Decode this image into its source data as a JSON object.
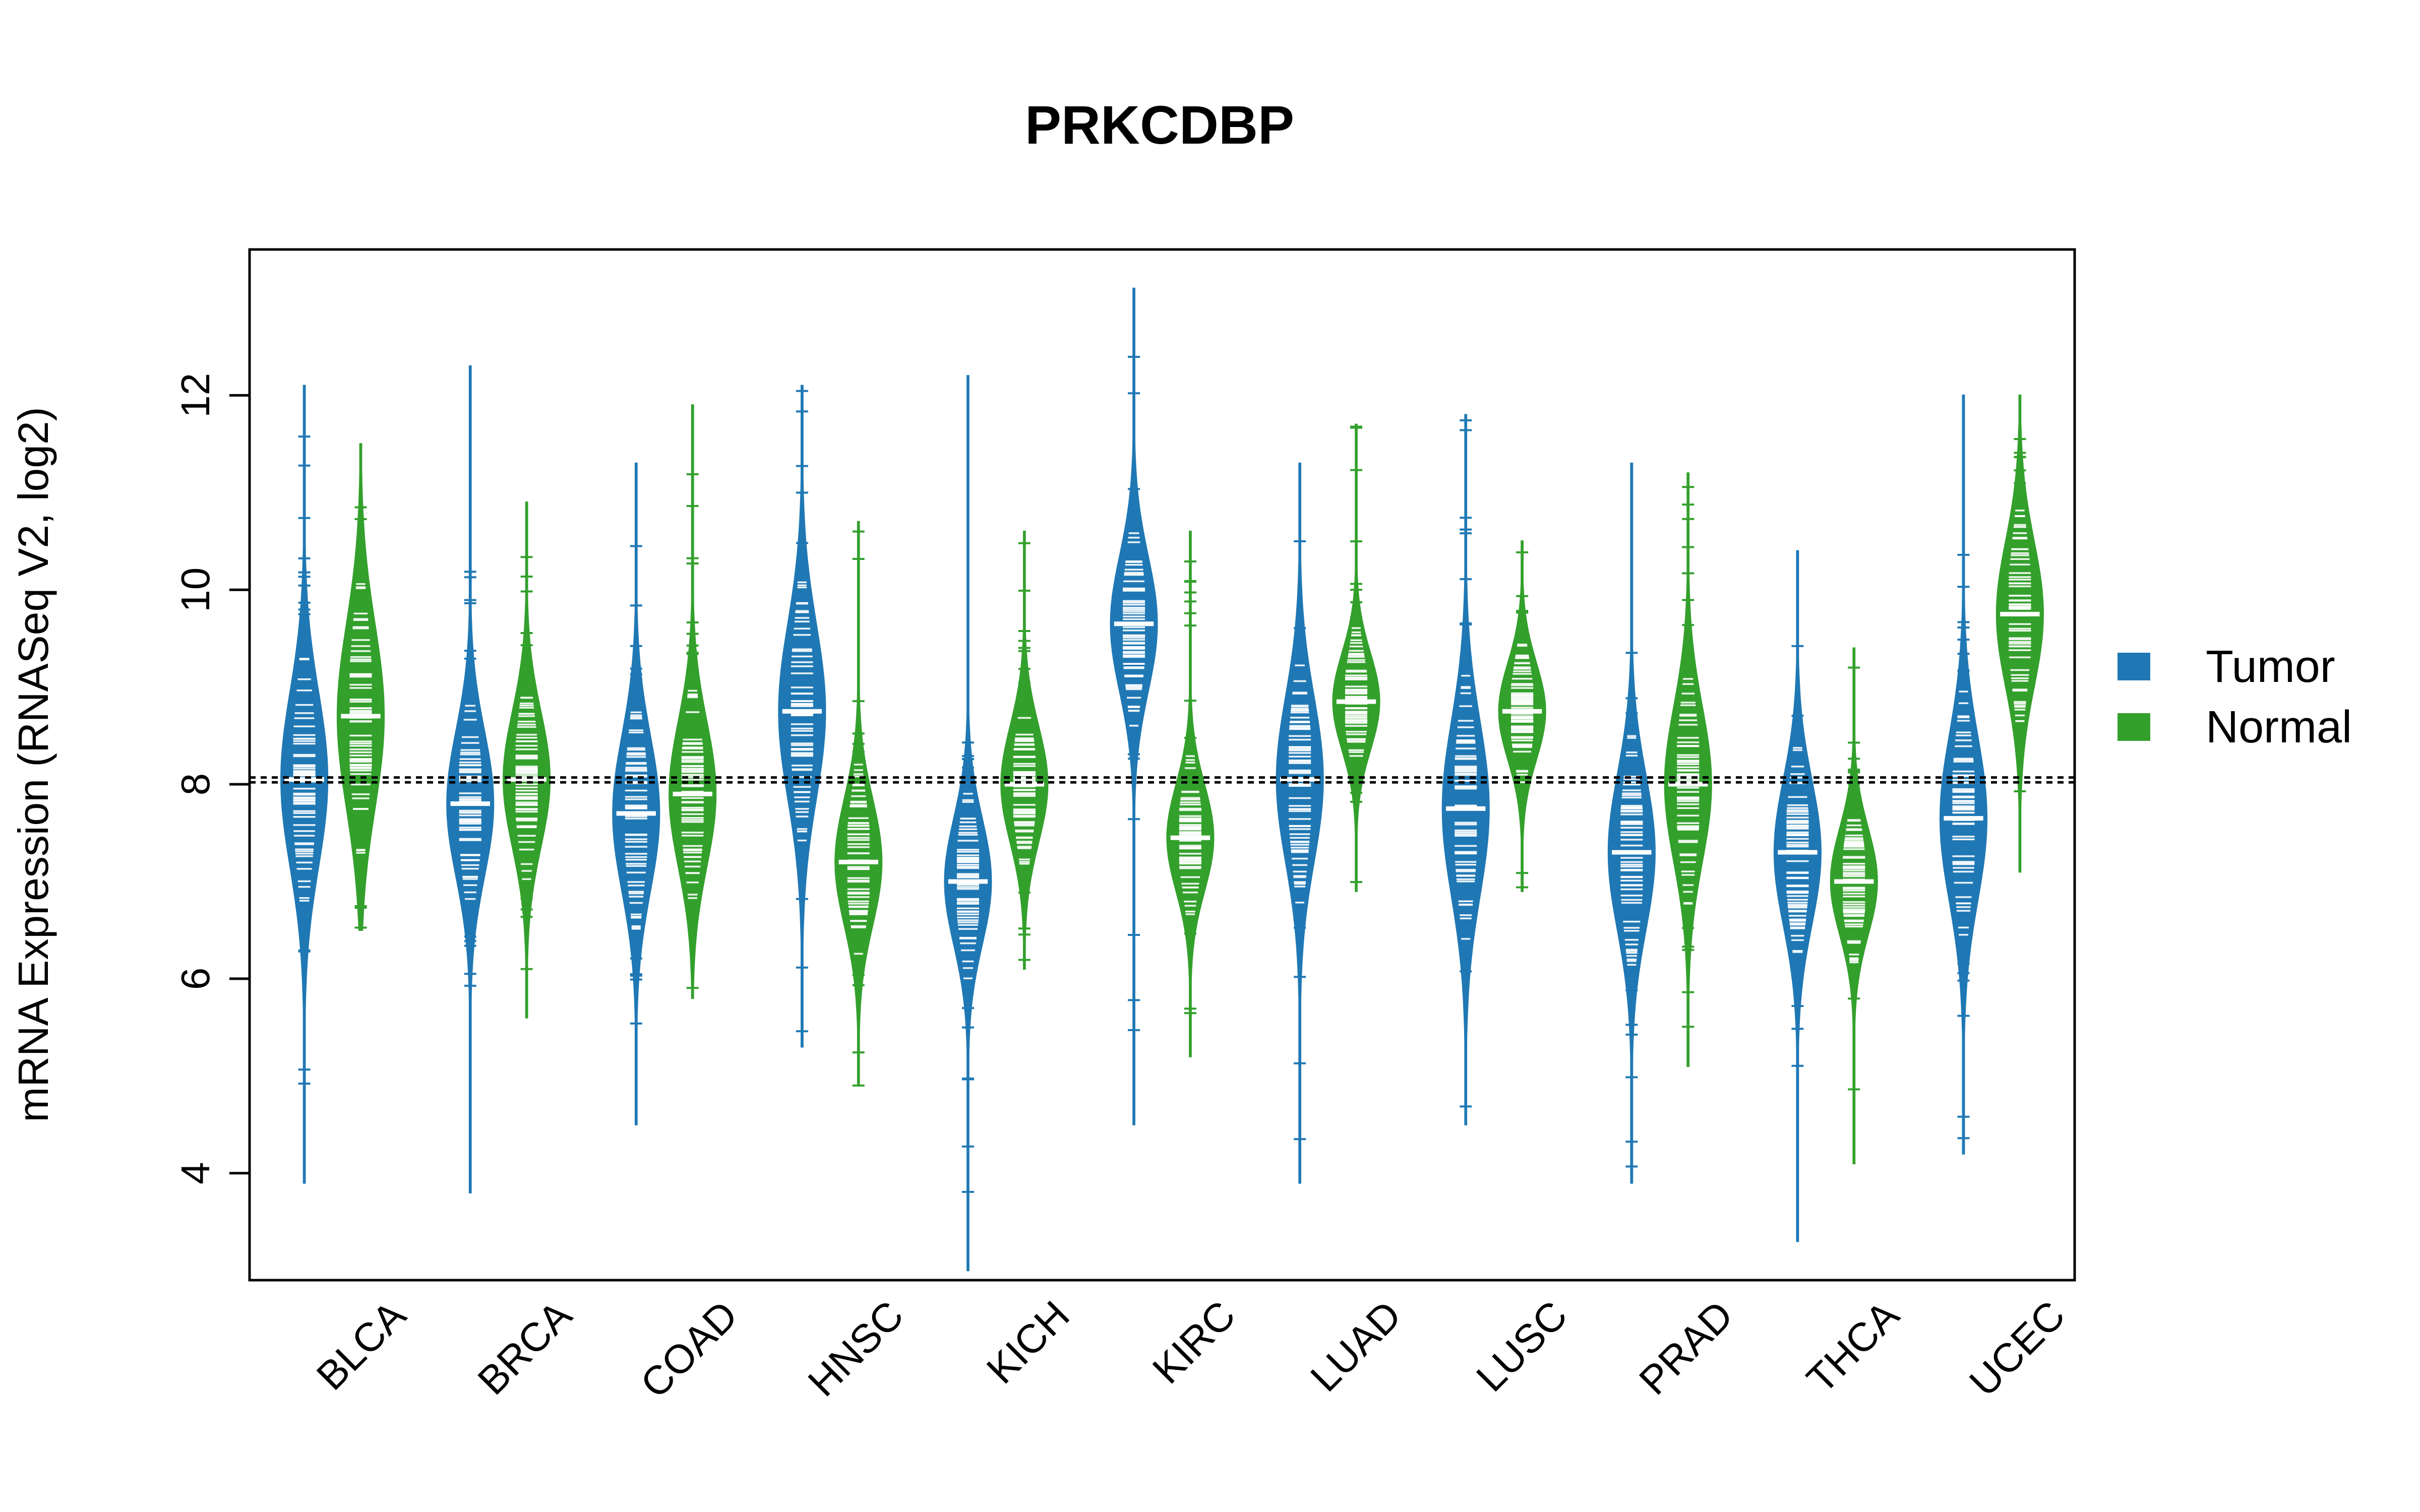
{
  "chart_data": {
    "type": "beanplot",
    "title": "PRKCDBP",
    "xlabel": "",
    "ylabel": "mRNA Expression (RNASeq V2, log2)",
    "ylim": [
      2.9,
      13.5
    ],
    "yticks": [
      4,
      6,
      8,
      10,
      12
    ],
    "reference_lines": [
      8.02,
      8.07
    ],
    "categories": [
      "BLCA",
      "BRCA",
      "COAD",
      "HNSC",
      "KICH",
      "KIRC",
      "LUAD",
      "LUSC",
      "PRAD",
      "THCA",
      "UCEC"
    ],
    "series": [
      {
        "name": "Tumor",
        "color": "#1F78B4",
        "medians": [
          8.05,
          7.8,
          7.7,
          8.75,
          7.0,
          9.65,
          8.05,
          7.75,
          7.3,
          7.3,
          7.65
        ],
        "min": [
          3.9,
          3.8,
          4.5,
          5.3,
          3.0,
          4.5,
          3.9,
          4.5,
          3.9,
          3.3,
          4.2
        ],
        "max": [
          12.1,
          12.3,
          11.3,
          12.1,
          12.2,
          13.1,
          11.3,
          11.8,
          11.3,
          10.4,
          12.0
        ],
        "spread": [
          0.9,
          0.75,
          0.8,
          0.9,
          0.65,
          0.7,
          0.85,
          0.9,
          0.8,
          0.75,
          0.85
        ]
      },
      {
        "name": "Normal",
        "color": "#33A02C",
        "medians": [
          8.7,
          8.05,
          7.9,
          7.2,
          8.0,
          7.45,
          8.85,
          8.75,
          8.0,
          7.0,
          9.75
        ],
        "min": [
          6.5,
          5.6,
          5.8,
          4.9,
          6.1,
          5.2,
          6.9,
          6.9,
          5.1,
          4.1,
          7.1
        ],
        "max": [
          11.5,
          10.9,
          11.9,
          10.7,
          10.6,
          10.6,
          11.7,
          10.5,
          11.2,
          9.4,
          12.0
        ],
        "spread": [
          0.95,
          0.7,
          0.75,
          0.65,
          0.6,
          0.55,
          0.5,
          0.5,
          0.8,
          0.55,
          0.75
        ]
      }
    ],
    "legend": {
      "position": "right",
      "entries": [
        "Tumor",
        "Normal"
      ]
    }
  }
}
